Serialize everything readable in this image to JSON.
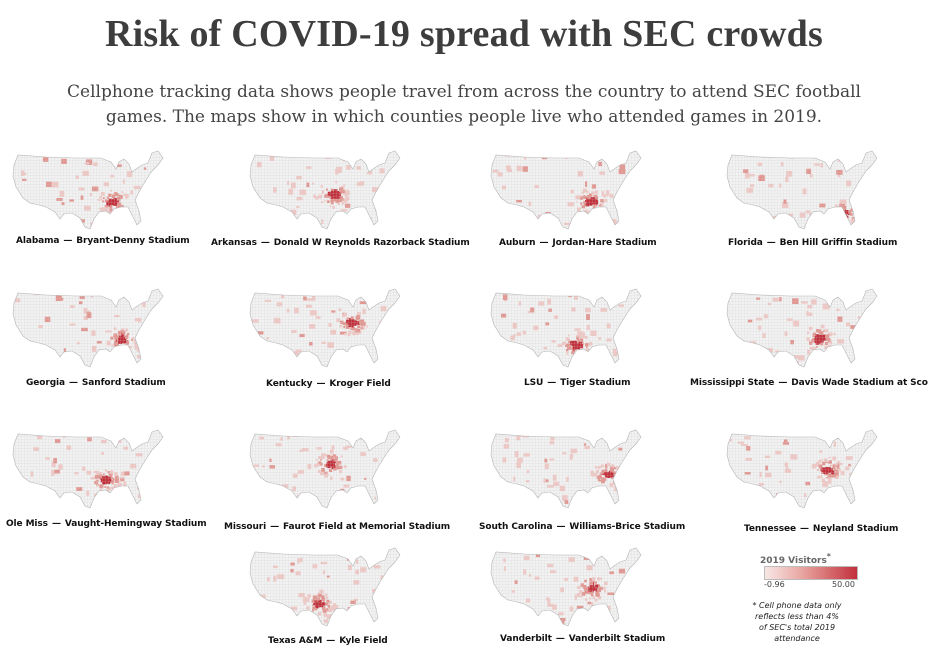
{
  "page": {
    "title": "Risk of COVID-19 spread with SEC crowds",
    "subtitle": "Cellphone tracking data shows people travel from across the country to attend SEC football games. The maps show in which counties people live who attended games in 2019."
  },
  "colors": {
    "land": "#f2f2f2",
    "county_lines": "#c9c9c9",
    "light": "#f0c9c6",
    "mid": "#e39690",
    "dark": "#c2303b"
  },
  "maps": [
    {
      "school": "Alabama",
      "stadium": "Bryant-Denny Stadium",
      "hotspot": "Alabama"
    },
    {
      "school": "Arkansas",
      "stadium": "Donald W Reynolds Razorback Stadium",
      "hotspot": "Arkansas"
    },
    {
      "school": "Auburn",
      "stadium": "Jordan-Hare Stadium",
      "hotspot": "Alabama"
    },
    {
      "school": "Florida",
      "stadium": "Ben Hill Griffin Stadium",
      "hotspot": "Florida"
    },
    {
      "school": "Georgia",
      "stadium": "Sanford Stadium",
      "hotspot": "Georgia"
    },
    {
      "school": "Kentucky",
      "stadium": "Kroger Field",
      "hotspot": "Kentucky"
    },
    {
      "school": "LSU",
      "stadium": "Tiger Stadium",
      "hotspot": "Louisiana"
    },
    {
      "school": "Mississippi  State",
      "stadium": "Davis Wade Stadium at Scott Field",
      "hotspot": "Mississippi"
    },
    {
      "school": "Ole Miss",
      "stadium": "Vaught-Hemingway Stadium",
      "hotspot": "Mississippi"
    },
    {
      "school": "Missouri",
      "stadium": "Faurot Field at Memorial Stadium",
      "hotspot": "Missouri"
    },
    {
      "school": "South Carolina",
      "stadium": "Williams-Brice  Stadium",
      "hotspot": "South Carolina"
    },
    {
      "school": "Tennessee",
      "stadium": "Neyland Stadium",
      "hotspot": "Tennessee"
    },
    {
      "school": "Texas A&M",
      "stadium": "Kyle Field",
      "hotspot": "Texas"
    },
    {
      "school": "Vanderbilt",
      "stadium": "Vanderbilt Stadium",
      "hotspot": "Tennessee"
    }
  ],
  "legend": {
    "title": "2019 Visitors",
    "asterisk": "*",
    "min": "-0.96",
    "max": "50.00"
  },
  "note": "* Cell phone data only reflects less than 4% of SEC's total 2019 attendance"
}
